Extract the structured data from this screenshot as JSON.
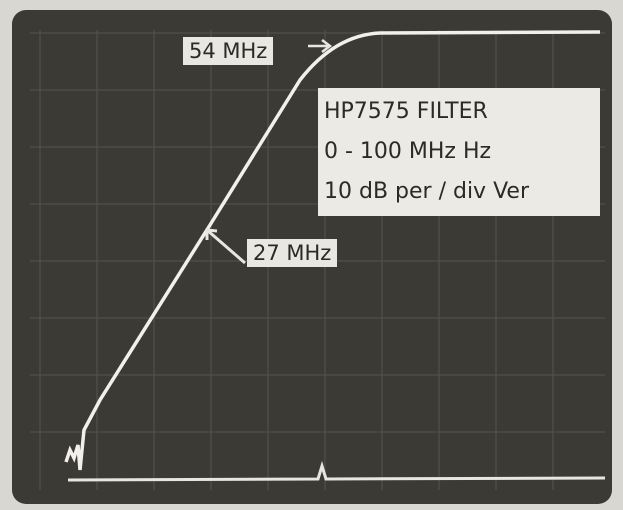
{
  "annotations": {
    "top_marker": "54 MHz",
    "mid_marker": "27 MHz"
  },
  "info_box": {
    "lines": [
      "HP7575 FILTER",
      "0 - 100 MHz Hz",
      "10 dB per / div Ver"
    ]
  }
}
